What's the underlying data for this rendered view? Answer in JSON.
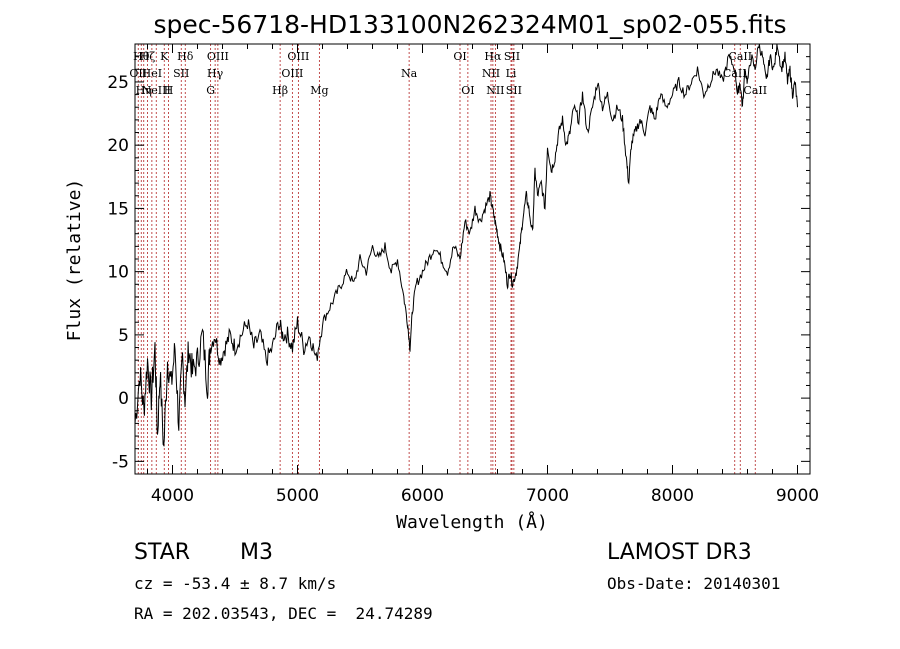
{
  "chart_data": {
    "type": "line",
    "title": "spec-56718-HD133100N262324M01_sp02-055.fits",
    "xlabel": "Wavelength (Å)",
    "ylabel": "Flux (relative)",
    "xlim": [
      3700,
      9100
    ],
    "ylim": [
      -6,
      28
    ],
    "xticks": [
      4000,
      5000,
      6000,
      7000,
      8000,
      9000
    ],
    "yticks": [
      -5,
      0,
      5,
      10,
      15,
      20,
      25
    ],
    "series": [
      {
        "name": "flux",
        "x": [
          3700,
          3740,
          3770,
          3800,
          3830,
          3860,
          3880,
          3900,
          3930,
          3960,
          3990,
          4020,
          4050,
          4080,
          4100,
          4130,
          4160,
          4200,
          4240,
          4280,
          4300,
          4340,
          4380,
          4420,
          4460,
          4500,
          4550,
          4600,
          4650,
          4700,
          4750,
          4800,
          4850,
          4880,
          4920,
          4960,
          5000,
          5050,
          5100,
          5150,
          5200,
          5250,
          5300,
          5350,
          5400,
          5450,
          5500,
          5550,
          5600,
          5650,
          5700,
          5750,
          5800,
          5850,
          5880,
          5900,
          5920,
          5950,
          6000,
          6050,
          6100,
          6150,
          6200,
          6250,
          6300,
          6340,
          6380,
          6420,
          6460,
          6500,
          6540,
          6560,
          6580,
          6600,
          6620,
          6650,
          6680,
          6700,
          6720,
          6750,
          6780,
          6800,
          6830,
          6850,
          6880,
          6900,
          6920,
          6950,
          6980,
          7000,
          7030,
          7060,
          7090,
          7120,
          7150,
          7180,
          7210,
          7250,
          7280,
          7320,
          7360,
          7400,
          7440,
          7480,
          7520,
          7560,
          7600,
          7630,
          7650,
          7670,
          7700,
          7740,
          7780,
          7820,
          7860,
          7900,
          7950,
          8000,
          8050,
          8100,
          8150,
          8200,
          8250,
          8300,
          8350,
          8400,
          8450,
          8500,
          8520,
          8540,
          8560,
          8580,
          8600,
          8630,
          8660,
          8690,
          8720,
          8750,
          8780,
          8810,
          8840,
          8870,
          8900,
          8920,
          8940,
          8960,
          8980,
          9000
        ],
        "y": [
          -2,
          2,
          -1,
          3,
          0,
          4,
          -3,
          2,
          -4,
          3,
          1,
          4,
          -2,
          3,
          0,
          4,
          2,
          3,
          5,
          1,
          4,
          5,
          3,
          4,
          5,
          4,
          5,
          6,
          4,
          5,
          3,
          4,
          6,
          5,
          5,
          4,
          6,
          4,
          5,
          3,
          6,
          7,
          8,
          9,
          10,
          9,
          11,
          10,
          12,
          11,
          12,
          10,
          11,
          8,
          6,
          4,
          7,
          9,
          10,
          11,
          12,
          11,
          10,
          12,
          11,
          14,
          13,
          15,
          14,
          15,
          16,
          15,
          14,
          13,
          12,
          11,
          9,
          10,
          9,
          10,
          12,
          14,
          16,
          15,
          13,
          18,
          16,
          17,
          15,
          20,
          18,
          19,
          21,
          22,
          20,
          21,
          23,
          22,
          24,
          21,
          23,
          25,
          23,
          24,
          22,
          23,
          22,
          19,
          17,
          20,
          21,
          22,
          21,
          23,
          22,
          24,
          23,
          24,
          25,
          24,
          25,
          26,
          24,
          25,
          26,
          25,
          27,
          26,
          24,
          25,
          23,
          26,
          25,
          27,
          26,
          28,
          27,
          25,
          27,
          26,
          28,
          26,
          27,
          25,
          26,
          24,
          25,
          23
        ]
      }
    ],
    "line_markers": [
      {
        "wave": 3726,
        "row": 1,
        "text": "OII"
      },
      {
        "wave": 3750,
        "row": 0,
        "text": "Hθ"
      },
      {
        "wave": 3770,
        "row": 2,
        "text": "Hη"
      },
      {
        "wave": 3800,
        "row": 0,
        "text": "Hζ"
      },
      {
        "wave": 3835,
        "row": 1,
        "text": "HeI"
      },
      {
        "wave": 3870,
        "row": 2,
        "text": "NeIII"
      },
      {
        "wave": 3934,
        "row": 0,
        "text": "K"
      },
      {
        "wave": 3968,
        "row": 2,
        "text": "H"
      },
      {
        "wave": 4070,
        "row": 1,
        "text": "SII"
      },
      {
        "wave": 4102,
        "row": 0,
        "text": "Hδ"
      },
      {
        "wave": 4305,
        "row": 2,
        "text": "G"
      },
      {
        "wave": 4341,
        "row": 1,
        "text": "Hγ"
      },
      {
        "wave": 4363,
        "row": 0,
        "text": "OIII"
      },
      {
        "wave": 4861,
        "row": 2,
        "text": "Hβ"
      },
      {
        "wave": 4959,
        "row": 1,
        "text": "OIII"
      },
      {
        "wave": 5007,
        "row": 0,
        "text": "OIII"
      },
      {
        "wave": 5175,
        "row": 2,
        "text": "Mg"
      },
      {
        "wave": 5893,
        "row": 1,
        "text": "Na"
      },
      {
        "wave": 6300,
        "row": 0,
        "text": "OI"
      },
      {
        "wave": 6363,
        "row": 2,
        "text": "OI"
      },
      {
        "wave": 6548,
        "row": 1,
        "text": "NII"
      },
      {
        "wave": 6563,
        "row": 0,
        "text": "Hα"
      },
      {
        "wave": 6583,
        "row": 2,
        "text": "NII"
      },
      {
        "wave": 6708,
        "row": 1,
        "text": "Li"
      },
      {
        "wave": 6716,
        "row": 0,
        "text": "SII"
      },
      {
        "wave": 6731,
        "row": 2,
        "text": "SII"
      },
      {
        "wave": 8498,
        "row": 1,
        "text": "CaII"
      },
      {
        "wave": 8542,
        "row": 0,
        "text": "CaII"
      },
      {
        "wave": 8662,
        "row": 2,
        "text": "CaII"
      }
    ]
  },
  "info": {
    "object_class": "STAR",
    "subclass": "M3",
    "redshift": "cz = -53.4 ± 8.7 km/s",
    "coords": "RA = 202.03543, DEC =  24.74289",
    "survey": "LAMOST DR3",
    "obs_date": "Obs-Date: 20140301"
  },
  "colors": {
    "marker": "#b22222",
    "axis": "#000000",
    "spectrum": "#000000"
  }
}
